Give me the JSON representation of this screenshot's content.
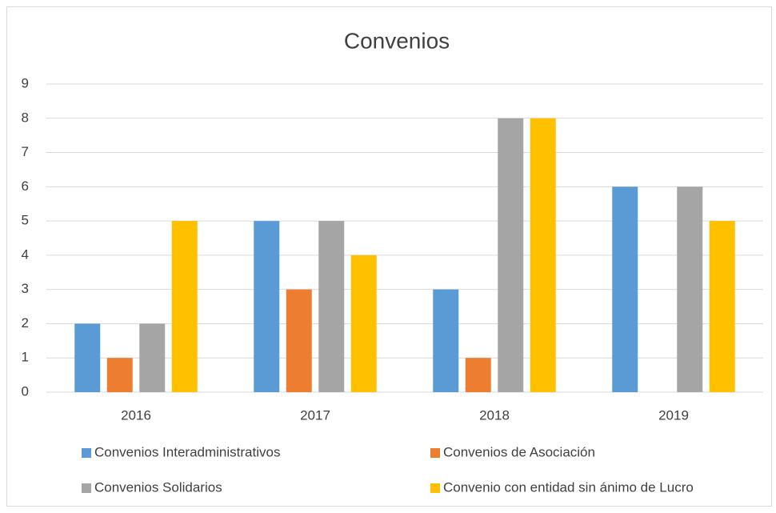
{
  "chart_data": {
    "type": "bar",
    "title": "Convenios",
    "categories": [
      "2016",
      "2017",
      "2018",
      "2019"
    ],
    "series": [
      {
        "name": "Convenios Interadministrativos",
        "color": "#5b9bd5",
        "values": [
          2,
          5,
          3,
          6
        ]
      },
      {
        "name": "Convenios de Asociación",
        "color": "#ed7d31",
        "values": [
          1,
          3,
          1,
          0
        ]
      },
      {
        "name": "Convenios Solidarios",
        "color": "#a5a5a5",
        "values": [
          2,
          5,
          8,
          6
        ]
      },
      {
        "name": "Convenio con entidad sin ánimo de Lucro",
        "color": "#ffc000",
        "values": [
          5,
          4,
          8,
          5
        ]
      }
    ],
    "ylim": [
      0,
      9
    ],
    "yticks": [
      0,
      1,
      2,
      3,
      4,
      5,
      6,
      7,
      8,
      9
    ],
    "grid": true,
    "legend": "bottom"
  }
}
